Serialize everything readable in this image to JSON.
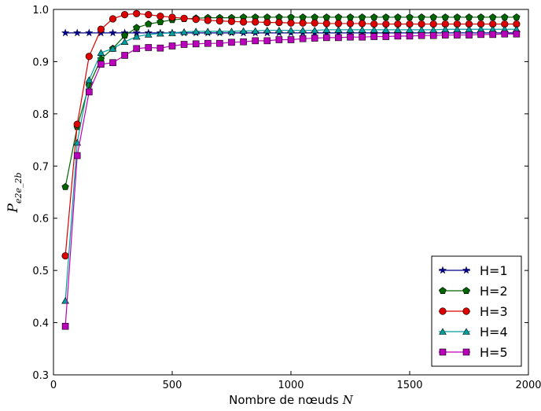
{
  "chart_data": {
    "type": "line",
    "title": "",
    "xlabel": "Nombre de nœuds",
    "xlabel_var": "N",
    "ylabel_var": "P",
    "ylabel_sub": "e2e_2b",
    "xlim": [
      0,
      2000
    ],
    "ylim": [
      0.3,
      1.0
    ],
    "x_ticks": [
      0,
      500,
      1000,
      1500,
      2000
    ],
    "y_ticks": [
      0.3,
      0.4,
      0.5,
      0.6,
      0.7,
      0.8,
      0.9,
      1.0
    ],
    "x_tick_labels": [
      "0",
      "500",
      "1000",
      "1500",
      "2000"
    ],
    "y_tick_labels": [
      "0.3",
      "0.4",
      "0.5",
      "0.6",
      "0.7",
      "0.8",
      "0.9",
      "1.0"
    ],
    "grid": false,
    "legend_position": "lower-right",
    "x": [
      50,
      100,
      150,
      200,
      250,
      300,
      350,
      400,
      450,
      500,
      550,
      600,
      650,
      700,
      750,
      800,
      850,
      900,
      950,
      1000,
      1050,
      1100,
      1150,
      1200,
      1250,
      1300,
      1350,
      1400,
      1450,
      1500,
      1550,
      1600,
      1650,
      1700,
      1750,
      1800,
      1850,
      1900,
      1950
    ],
    "series": [
      {
        "name": "H=1",
        "color": "#00008b",
        "marker": "star",
        "values": [
          0.955,
          0.955,
          0.955,
          0.955,
          0.955,
          0.955,
          0.955,
          0.955,
          0.955,
          0.955,
          0.955,
          0.955,
          0.955,
          0.955,
          0.955,
          0.955,
          0.955,
          0.955,
          0.955,
          0.955,
          0.955,
          0.955,
          0.955,
          0.955,
          0.955,
          0.955,
          0.955,
          0.955,
          0.955,
          0.955,
          0.955,
          0.955,
          0.955,
          0.955,
          0.955,
          0.955,
          0.955,
          0.955,
          0.955
        ]
      },
      {
        "name": "H=2",
        "color": "#006400",
        "marker": "pentagon",
        "values": [
          0.66,
          0.775,
          0.855,
          0.905,
          0.925,
          0.95,
          0.965,
          0.972,
          0.976,
          0.98,
          0.982,
          0.983,
          0.984,
          0.984,
          0.984,
          0.985,
          0.985,
          0.985,
          0.985,
          0.985,
          0.985,
          0.985,
          0.985,
          0.985,
          0.985,
          0.985,
          0.985,
          0.985,
          0.985,
          0.985,
          0.985,
          0.985,
          0.985,
          0.985,
          0.985,
          0.985,
          0.985,
          0.985,
          0.985
        ]
      },
      {
        "name": "H=3",
        "color": "#dd0000",
        "marker": "circle",
        "values": [
          0.528,
          0.78,
          0.91,
          0.962,
          0.982,
          0.99,
          0.992,
          0.99,
          0.987,
          0.985,
          0.983,
          0.981,
          0.979,
          0.978,
          0.977,
          0.976,
          0.976,
          0.975,
          0.975,
          0.974,
          0.974,
          0.974,
          0.973,
          0.973,
          0.973,
          0.973,
          0.972,
          0.972,
          0.972,
          0.972,
          0.972,
          0.972,
          0.972,
          0.972,
          0.972,
          0.972,
          0.972,
          0.972,
          0.972
        ]
      },
      {
        "name": "H=4",
        "color": "#00a0a0",
        "marker": "triangle",
        "values": [
          0.442,
          0.745,
          0.865,
          0.917,
          0.925,
          0.938,
          0.948,
          0.952,
          0.954,
          0.955,
          0.957,
          0.958,
          0.958,
          0.958,
          0.958,
          0.959,
          0.959,
          0.96,
          0.96,
          0.96,
          0.96,
          0.96,
          0.961,
          0.961,
          0.961,
          0.961,
          0.961,
          0.961,
          0.961,
          0.961,
          0.961,
          0.961,
          0.962,
          0.962,
          0.962,
          0.962,
          0.962,
          0.962,
          0.962
        ]
      },
      {
        "name": "H=5",
        "color": "#bb00bb",
        "marker": "square",
        "values": [
          0.393,
          0.72,
          0.842,
          0.895,
          0.898,
          0.912,
          0.925,
          0.927,
          0.926,
          0.93,
          0.933,
          0.934,
          0.935,
          0.935,
          0.937,
          0.938,
          0.94,
          0.94,
          0.942,
          0.942,
          0.944,
          0.945,
          0.946,
          0.946,
          0.947,
          0.947,
          0.948,
          0.948,
          0.949,
          0.949,
          0.95,
          0.95,
          0.951,
          0.951,
          0.951,
          0.952,
          0.952,
          0.953,
          0.953
        ]
      }
    ]
  }
}
